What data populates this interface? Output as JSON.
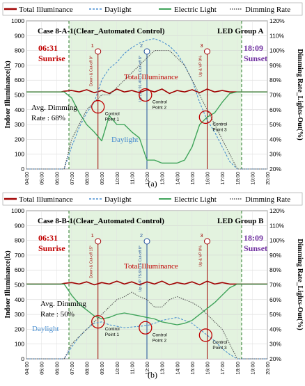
{
  "legend": [
    {
      "label": "Total Illuminance",
      "color": "#a00000",
      "style": "solid"
    },
    {
      "label": "Daylight",
      "color": "#4a8fd0",
      "style": "dash"
    },
    {
      "label": "Electric Light",
      "color": "#3fa45a",
      "style": "solid"
    },
    {
      "label": "Dimming Rate",
      "color": "#555555",
      "style": "dot"
    }
  ],
  "y_left_label": "Indoor Illuminance(lx)",
  "y_right_label": "Dimming Rate_Lights-Out(%)",
  "chart_data": [
    {
      "type": "line",
      "panel_caption": "(a)",
      "title": "Case 8-A-1(Clear_Automated Control)",
      "group": "LED Group A",
      "sunrise_time": "06:31",
      "sunrise_label": "Sunrise",
      "sunset_time": "18:09",
      "sunset_label": "Sunset",
      "total_label": "Total Illuminance",
      "daylight_label": "Daylight",
      "avg_dimming_line1": "Avg. Dimming",
      "avg_dimming_line2": "Rate : 68%",
      "x_ticks": [
        "04:00",
        "05:00",
        "06:00",
        "07:00",
        "08:00",
        "09:00",
        "10:00",
        "11:00",
        "12:00",
        "13:00",
        "14:00",
        "15:00",
        "16:00",
        "17:00",
        "18:00",
        "19:00",
        "20:00"
      ],
      "y_left_ticks": [
        0,
        100,
        200,
        300,
        400,
        500,
        600,
        700,
        800,
        900,
        1000
      ],
      "y_right_ticks": [
        "20%",
        "30%",
        "40%",
        "50%",
        "60%",
        "70%",
        "80%",
        "90%",
        "100%",
        "110%",
        "120%"
      ],
      "ylim_left": [
        0,
        1000
      ],
      "ylim_right": [
        20,
        120
      ],
      "events": [
        {
          "num": "1",
          "x": 8.75,
          "text": "Down & Cut-off 0°",
          "color": "#a00000"
        },
        {
          "num": "2",
          "x": 12.0,
          "text": "Up (VP 91.4%) & Cut-off 8°",
          "color": "#1f4e99"
        },
        {
          "num": "3",
          "x": 16.0,
          "text": "Up & VP 0%",
          "color": "#a00000"
        }
      ],
      "control_points": [
        {
          "label": "Control Point 1",
          "x": 8.75,
          "y": 420
        },
        {
          "label": "Control Point 2",
          "x": 11.9,
          "y": 500
        },
        {
          "label": "Control Point 3",
          "x": 15.9,
          "y": 350
        }
      ],
      "series": [
        {
          "name": "Total Illuminance",
          "x": [
            4,
            6.3,
            6.5,
            7,
            7.5,
            8,
            8.5,
            9,
            9.5,
            10,
            10.5,
            11,
            11.5,
            12,
            12.5,
            13,
            13.5,
            14,
            14.5,
            15,
            15.5,
            16,
            16.5,
            17,
            17.5,
            18,
            20
          ],
          "y": [
            520,
            520,
            525,
            530,
            520,
            535,
            515,
            530,
            510,
            540,
            520,
            530,
            515,
            535,
            520,
            540,
            510,
            530,
            520,
            535,
            515,
            540,
            520,
            530,
            520,
            520,
            520
          ]
        },
        {
          "name": "Daylight",
          "x": [
            4,
            6.5,
            7,
            7.5,
            8,
            8.5,
            9,
            9.5,
            10,
            10.5,
            11,
            11.5,
            12,
            12.5,
            13,
            13.5,
            14,
            14.5,
            15,
            15.5,
            16,
            16.5,
            17,
            17.5,
            18,
            20
          ],
          "y": [
            0,
            0,
            150,
            280,
            380,
            450,
            600,
            680,
            720,
            780,
            820,
            850,
            870,
            880,
            860,
            830,
            780,
            700,
            600,
            450,
            330,
            250,
            150,
            50,
            0,
            0
          ]
        },
        {
          "name": "Electric Light",
          "x": [
            4,
            6.5,
            7,
            7.5,
            8,
            8.5,
            9,
            9.5,
            10,
            10.5,
            11,
            11.5,
            12,
            12.5,
            13,
            13.5,
            14,
            14.5,
            15,
            15.5,
            16,
            16.5,
            17,
            17.5,
            18,
            20
          ],
          "y": [
            520,
            520,
            480,
            380,
            300,
            250,
            190,
            360,
            300,
            300,
            250,
            210,
            60,
            60,
            40,
            40,
            40,
            60,
            150,
            300,
            350,
            380,
            450,
            510,
            520,
            520
          ]
        },
        {
          "name": "Dimming Rate",
          "x": [
            4,
            6.5,
            7,
            7.5,
            8,
            8.5,
            9,
            9.5,
            10,
            10.5,
            11,
            11.5,
            12,
            12.5,
            13,
            13.5,
            14,
            14.5,
            15,
            15.5,
            16,
            16.5,
            17,
            17.5,
            18,
            20
          ],
          "y": [
            20,
            20,
            40,
            50,
            60,
            65,
            70,
            70,
            75,
            80,
            85,
            90,
            95,
            100,
            100,
            100,
            95,
            90,
            80,
            70,
            60,
            50,
            40,
            30,
            20,
            20
          ]
        }
      ]
    },
    {
      "type": "line",
      "panel_caption": "(b)",
      "title": "Case 8-B-1(Clear_Automated Control)",
      "group": "LED Group B",
      "sunrise_time": "06:31",
      "sunrise_label": "Sunrise",
      "sunset_time": "18:09",
      "sunset_label": "Sunset",
      "total_label": "Total Illuminance",
      "daylight_label": "Daylight",
      "avg_dimming_line1": "Avg. Dimming",
      "avg_dimming_line2": "Rate : 50%",
      "x_ticks": [
        "04:00",
        "05:00",
        "06:00",
        "07:00",
        "08:00",
        "09:00",
        "10:00",
        "11:00",
        "12:00",
        "13:00",
        "14:00",
        "15:00",
        "16:00",
        "17:00",
        "18:00",
        "19:00",
        "20:00"
      ],
      "y_left_ticks": [
        0,
        100,
        200,
        300,
        400,
        500,
        600,
        700,
        800,
        900,
        1000
      ],
      "y_right_ticks": [
        "20%",
        "30%",
        "40%",
        "50%",
        "60%",
        "70%",
        "80%",
        "90%",
        "100%",
        "110%",
        "120%"
      ],
      "ylim_left": [
        0,
        1000
      ],
      "ylim_right": [
        20,
        120
      ],
      "events": [
        {
          "num": "1",
          "x": 8.75,
          "text": "Down & Cut-off 15°",
          "color": "#a00000"
        },
        {
          "num": "2",
          "x": 12.0,
          "text": "Up (VP 75.6%) & Cut-off 8°",
          "color": "#1f4e99"
        },
        {
          "num": "3",
          "x": 16.0,
          "text": "Up & VP 0%",
          "color": "#a00000"
        }
      ],
      "control_points": [
        {
          "label": "Control Point 1",
          "x": 8.75,
          "y": 250
        },
        {
          "label": "Control Point 2",
          "x": 11.9,
          "y": 210
        },
        {
          "label": "Control Point 3",
          "x": 15.9,
          "y": 160
        }
      ],
      "series": [
        {
          "name": "Total Illuminance",
          "x": [
            4,
            6.3,
            6.5,
            7,
            7.5,
            8,
            8.5,
            9,
            9.5,
            10,
            10.5,
            11,
            11.5,
            12,
            12.5,
            13,
            13.5,
            14,
            14.5,
            15,
            15.5,
            16,
            16.5,
            17,
            17.5,
            18,
            20
          ],
          "y": [
            505,
            505,
            510,
            515,
            505,
            520,
            500,
            515,
            505,
            525,
            505,
            520,
            500,
            520,
            505,
            525,
            500,
            515,
            505,
            520,
            500,
            525,
            505,
            515,
            505,
            505,
            505
          ]
        },
        {
          "name": "Daylight",
          "x": [
            4,
            6.5,
            7,
            7.5,
            8,
            8.5,
            9,
            9.5,
            10,
            10.5,
            11,
            11.5,
            12,
            12.5,
            13,
            13.5,
            14,
            14.5,
            15,
            15.5,
            16,
            16.5,
            17,
            17.5,
            18,
            20
          ],
          "y": [
            0,
            0,
            80,
            150,
            200,
            240,
            250,
            230,
            220,
            210,
            215,
            220,
            225,
            240,
            260,
            270,
            280,
            260,
            240,
            200,
            160,
            120,
            70,
            30,
            0,
            0
          ]
        },
        {
          "name": "Electric Light",
          "x": [
            4,
            6.5,
            7,
            7.5,
            8,
            8.5,
            9,
            9.5,
            10,
            10.5,
            11,
            11.5,
            12,
            12.5,
            13,
            13.5,
            14,
            14.5,
            15,
            15.5,
            16,
            16.5,
            17,
            17.5,
            18,
            20
          ],
          "y": [
            505,
            505,
            430,
            370,
            330,
            290,
            270,
            280,
            300,
            310,
            300,
            290,
            280,
            270,
            250,
            240,
            230,
            240,
            260,
            300,
            340,
            380,
            430,
            480,
            505,
            505
          ]
        },
        {
          "name": "Dimming Rate",
          "x": [
            4,
            6.5,
            7,
            7.5,
            8,
            8.5,
            9,
            9.5,
            10,
            10.5,
            11,
            11.5,
            12,
            12.5,
            13,
            13.5,
            14,
            14.5,
            15,
            15.5,
            16,
            16.5,
            17,
            17.5,
            18,
            20
          ],
          "y": [
            20,
            20,
            30,
            35,
            40,
            45,
            50,
            55,
            60,
            62,
            65,
            62,
            60,
            55,
            55,
            60,
            62,
            60,
            58,
            55,
            50,
            45,
            40,
            30,
            20,
            20
          ]
        }
      ]
    }
  ]
}
